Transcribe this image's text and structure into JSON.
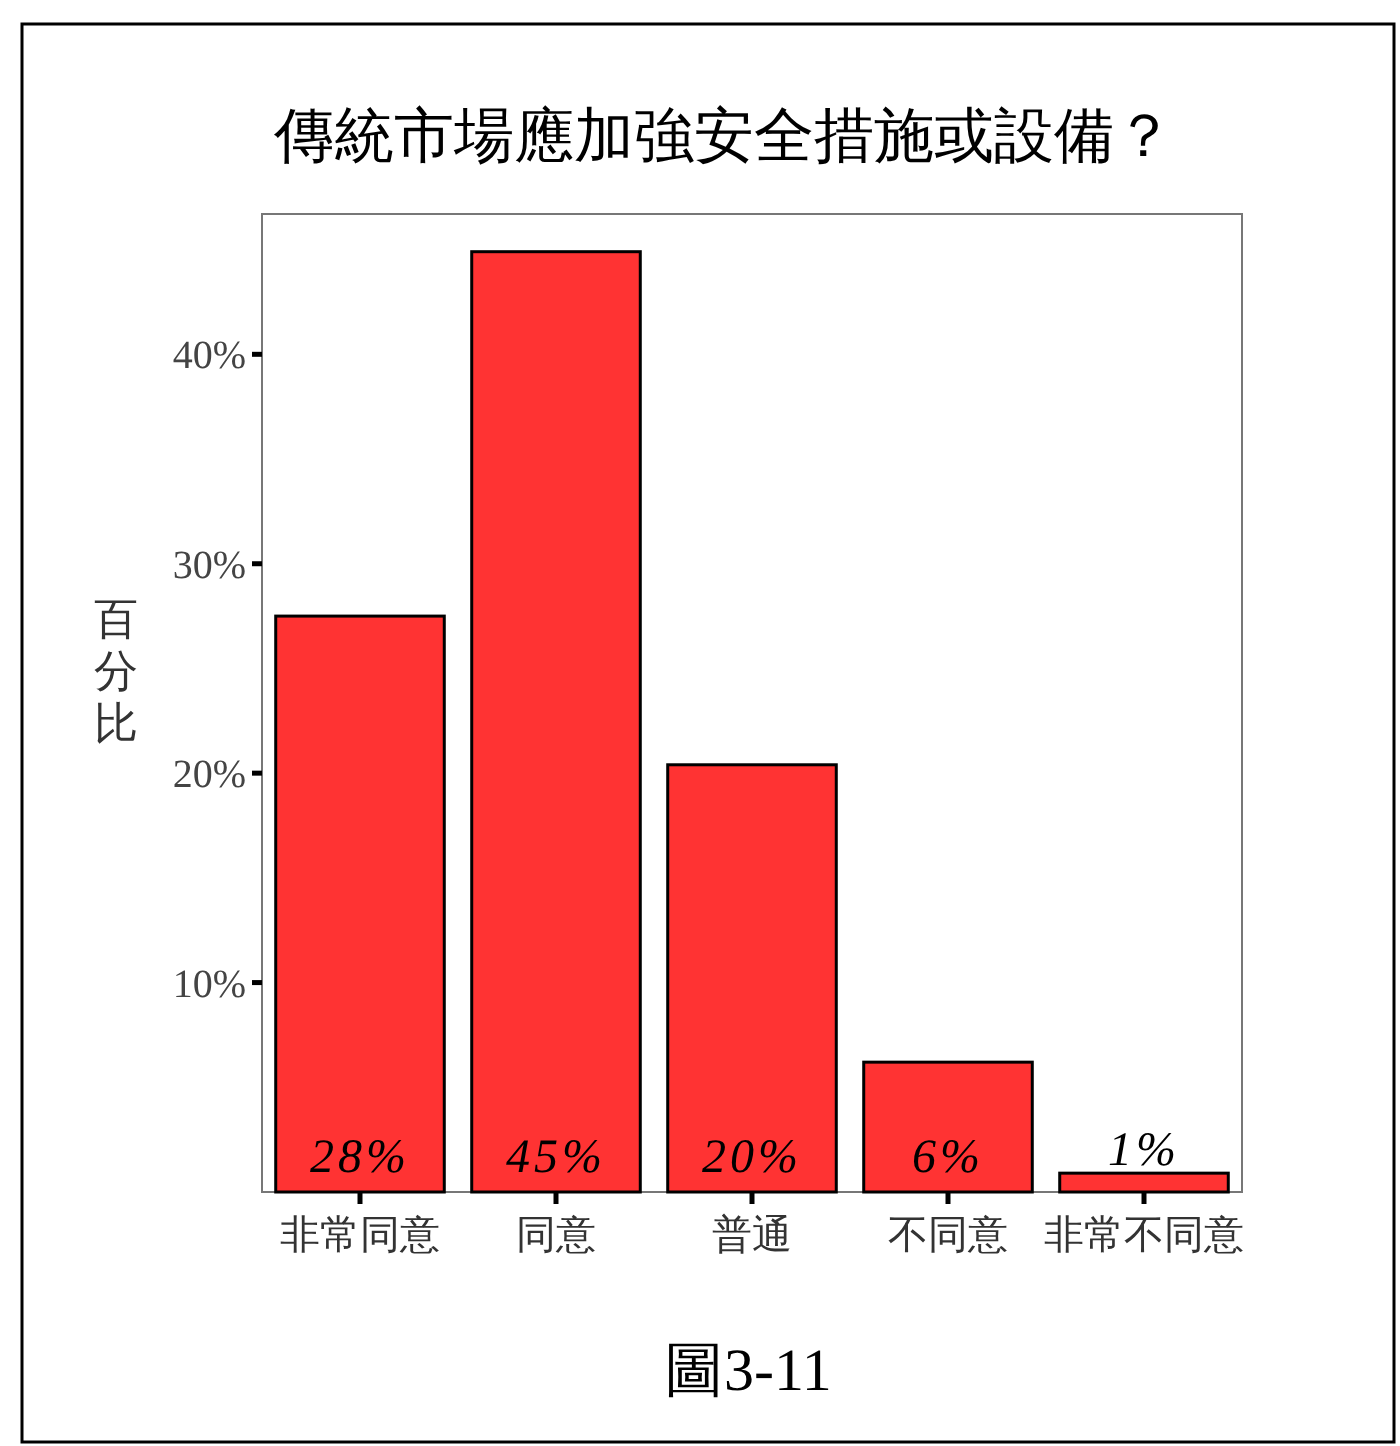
{
  "chart_data": {
    "type": "bar",
    "title": "傳統市場應加強安全措施或設備？",
    "ylabel": "百分比",
    "categories": [
      "非常同意",
      "同意",
      "普通",
      "不同意",
      "非常不同意"
    ],
    "values": [
      27.5,
      44.9,
      20.4,
      6.2,
      0.9
    ],
    "value_labels": [
      "28%",
      "45%",
      "20%",
      "6%",
      "1%"
    ],
    "color": "#ff3333",
    "ylim": [
      0,
      46.7
    ],
    "yticks": [
      {
        "value": 10,
        "label": "10%"
      },
      {
        "value": 20,
        "label": "20%"
      },
      {
        "value": 30,
        "label": "30%"
      },
      {
        "value": 40,
        "label": "40%"
      }
    ],
    "annotations": [
      "圖3-11"
    ]
  }
}
